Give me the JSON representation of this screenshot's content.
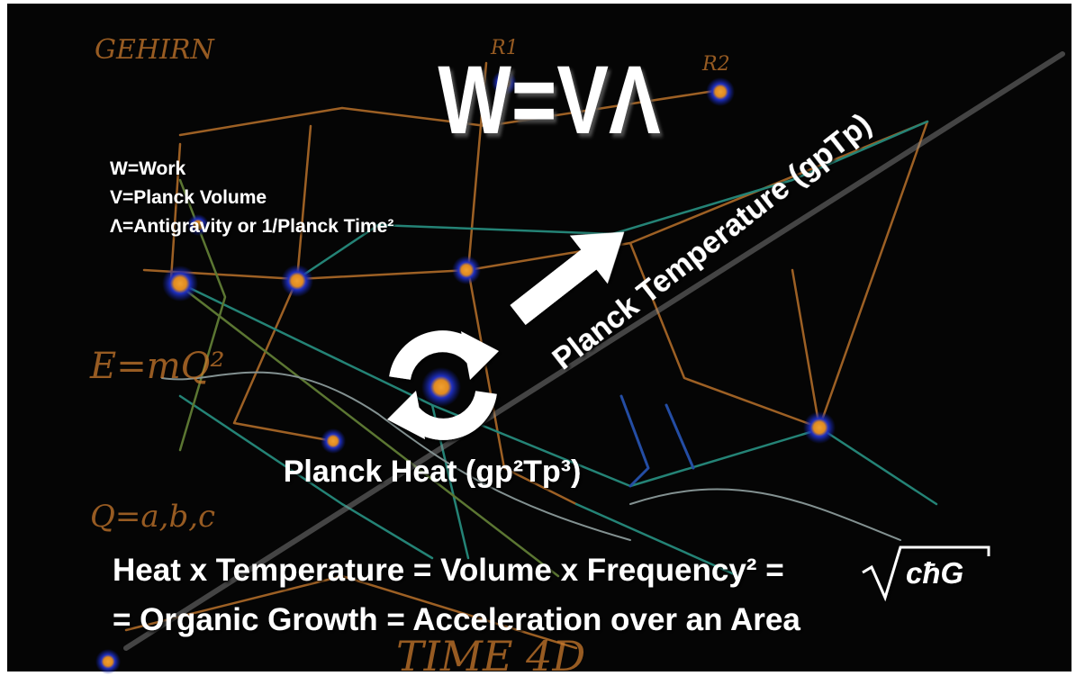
{
  "slide": {
    "title": "W=VΛ",
    "legend": [
      "W=Work",
      "V=Planck Volume",
      "Λ=Antigravity or 1/Planck Time²"
    ],
    "arrow_label": "Planck Temperature (gpTp)",
    "center_label": "Planck Heat (gp²Tp³)",
    "equation": {
      "line1": "Heat x Temperature = Volume x Frequency² =",
      "radicand": "cħG",
      "line2": "= Organic Growth = Acceleration over an Area"
    },
    "handwriting": [
      "GEHIRN",
      "E=mQ²",
      "TIME 4D",
      "R1",
      "R2",
      "Q=a,b,c"
    ]
  }
}
